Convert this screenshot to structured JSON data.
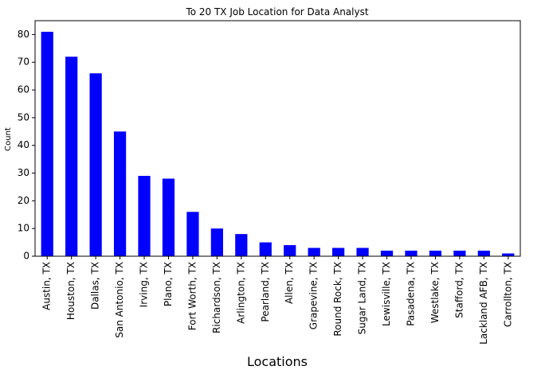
{
  "chart_data": {
    "type": "bar",
    "title": "To 20 TX Job Location for Data Analyst",
    "xlabel": "Locations",
    "ylabel": "Count",
    "categories": [
      "Austin, TX",
      "Houston, TX",
      "Dallas, TX",
      "San Antonio, TX",
      "Irving, TX",
      "Plano, TX",
      "Fort Worth, TX",
      "Richardson, TX",
      "Arlington, TX",
      "Pearland, TX",
      "Allen, TX",
      "Grapevine, TX",
      "Round Rock, TX",
      "Sugar Land, TX",
      "Lewisville, TX",
      "Pasadena, TX",
      "Westlake, TX",
      "Stafford, TX",
      "Lackland AFB, TX",
      "Carrollton, TX"
    ],
    "values": [
      81,
      72,
      66,
      45,
      29,
      28,
      16,
      10,
      8,
      5,
      4,
      3,
      3,
      3,
      2,
      2,
      2,
      2,
      2,
      1
    ],
    "ylim": [
      0,
      85
    ],
    "yticks": [
      0,
      10,
      20,
      30,
      40,
      50,
      60,
      70,
      80
    ],
    "bar_color": "#0000ff",
    "grid": false,
    "legend": false
  }
}
